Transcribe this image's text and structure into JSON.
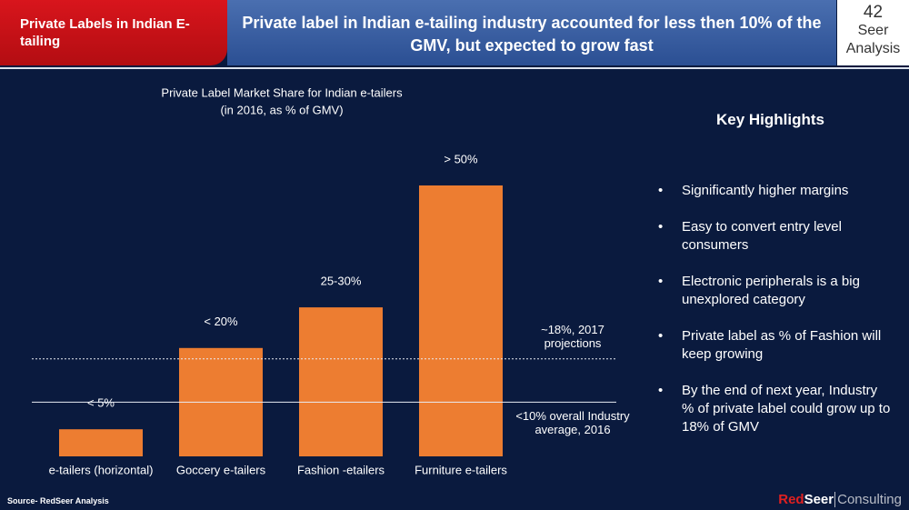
{
  "header": {
    "section": "Private Labels in Indian E-tailing",
    "headline": "Private label in Indian e-tailing industry accounted for less then 10% of the GMV, but expected to grow fast",
    "page_number": "42",
    "badge": [
      "Seer",
      "Analysis"
    ]
  },
  "chart_data": {
    "type": "bar",
    "title": "Private Label Market Share for Indian e-tailers",
    "subtitle": "(in 2016, as % of GMV)",
    "categories": [
      "e-tailers (horizontal)",
      "Goccery e-tailers",
      "Fashion -etailers",
      "Furniture e-tailers"
    ],
    "values": [
      5,
      20,
      27.5,
      50
    ],
    "value_labels": [
      "< 5%",
      "< 20%",
      "25-30%",
      "> 50%"
    ],
    "color": "#ed7d31",
    "reference_lines": [
      {
        "value": 18,
        "label": "~18%, 2017 projections",
        "style": "dotted"
      },
      {
        "value": 10,
        "label": "<10% overall Industry average, 2016",
        "style": "solid"
      }
    ]
  },
  "highlights": {
    "title": "Key Highlights",
    "items": [
      "Significantly higher margins",
      "Easy to convert entry level consumers",
      "Electronic peripherals is a big unexplored category",
      "Private label as % of Fashion will keep growing",
      "By the end of next year, Industry % of private label could grow up to 18% of GMV"
    ]
  },
  "footer": {
    "source": "Source- RedSeer Analysis",
    "logo": [
      "Red",
      "Seer",
      "Consulting"
    ]
  }
}
